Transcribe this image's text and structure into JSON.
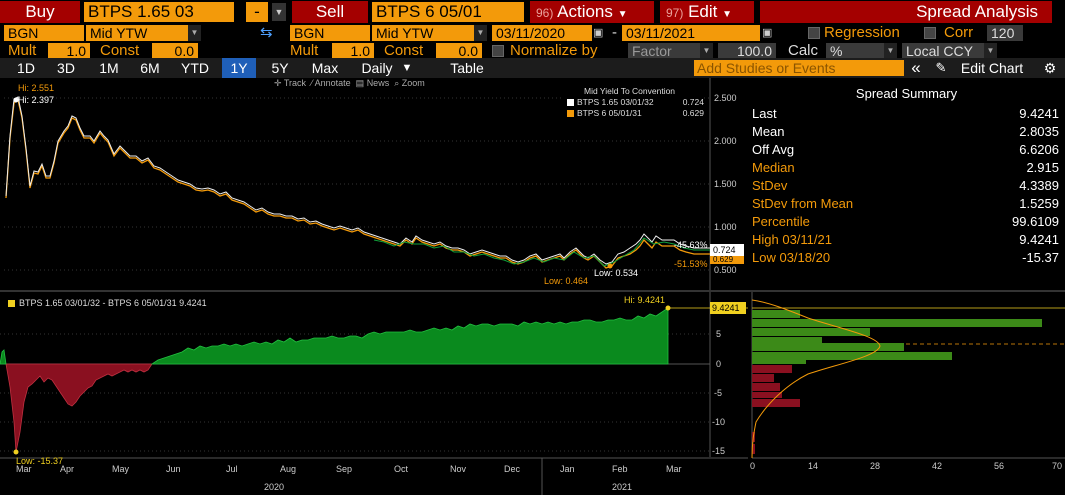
{
  "header": {
    "buy_label": "Buy",
    "buy_security": "BTPS 1.65 03",
    "dash_value": "-",
    "sell_label": "Sell",
    "sell_security": "BTPS 6 05/01",
    "actions_num": "96)",
    "actions_label": "Actions",
    "edit_num": "97)",
    "edit_label": "Edit",
    "title": "Spread Analysis"
  },
  "row2": {
    "source1": "BGN",
    "field1": "Mid YTW",
    "source2": "BGN",
    "field2": "Mid YTW",
    "start_date": "03/11/2020",
    "dash": "-",
    "end_date": "03/11/2021",
    "regression_label": "Regression",
    "corr_label": "Corr",
    "corr_value": "120"
  },
  "row3": {
    "mult1_label": "Mult",
    "mult1_value": "1.0",
    "const1_label": "Const",
    "const1_value": "0.0",
    "mult2_label": "Mult",
    "mult2_value": "1.0",
    "const2_label": "Const",
    "const2_value": "0.0",
    "normalize_label": "Normalize by",
    "normalize_value": "Factor",
    "factor_value": "100.0",
    "calc_label": "Calc",
    "calc_value": "%",
    "ccy_value": "Local CCY"
  },
  "toolbar": {
    "periods": [
      "1D",
      "3D",
      "1M",
      "6M",
      "YTD",
      "1Y",
      "5Y",
      "Max"
    ],
    "selected_period": "1Y",
    "frequency": "Daily",
    "table_label": "Table",
    "studies_placeholder": "Add Studies or Events",
    "collapse_label": "«",
    "edit_chart_label": "Edit Chart"
  },
  "top_chart": {
    "tools": [
      "Track",
      "Annotate",
      "News",
      "Zoom"
    ],
    "legend_title": "Mid Yield To Convention",
    "legend": [
      {
        "name": "BTPS 1.65 03/01/32",
        "value": "0.724",
        "color": "#ffffff"
      },
      {
        "name": "BTPS 6 05/01/31",
        "value": "0.629",
        "color": "#f39a0a"
      }
    ],
    "hi1": "Hi: 2.551",
    "hi2": "Hi: 2.397",
    "low1": "Low: 0.464",
    "low2": "Low: 0.534",
    "pct1": "-45.63%",
    "pct2": "-51.53%",
    "last1": "0.724",
    "last2": "0.629",
    "y_ticks": [
      "2.500",
      "2.000",
      "1.500",
      "1.000",
      "0.500"
    ]
  },
  "bottom_chart": {
    "legend": "BTPS 1.65 03/01/32 - BTPS 6 05/01/31 9.4241",
    "hi": "Hi: 9.4241",
    "low": "Low: -15.37",
    "last": "9.4241",
    "y_ticks": [
      "5",
      "0",
      "-5",
      "-10",
      "-15"
    ],
    "months": [
      "Mar",
      "Apr",
      "May",
      "Jun",
      "Jul",
      "Aug",
      "Sep",
      "Oct",
      "Nov",
      "Dec",
      "Jan",
      "Feb",
      "Mar"
    ],
    "years": [
      "2020",
      "2021"
    ]
  },
  "histogram": {
    "x_ticks": [
      "0",
      "14",
      "28",
      "42",
      "56",
      "70"
    ]
  },
  "summary": {
    "title": "Spread Summary",
    "rows": [
      {
        "label": "Last",
        "value": "9.4241",
        "color": "#ffffff"
      },
      {
        "label": "Mean",
        "value": "2.8035",
        "color": "#ffffff"
      },
      {
        "label": "Off Avg",
        "value": "6.6206",
        "color": "#ffffff"
      },
      {
        "label": "Median",
        "value": "2.915",
        "color": "#f39a0a"
      },
      {
        "label": "StDev",
        "value": "4.3389",
        "color": "#f39a0a"
      },
      {
        "label": "StDev from Mean",
        "value": "1.5259",
        "color": "#f39a0a"
      },
      {
        "label": "Percentile",
        "value": "99.6109",
        "color": "#f39a0a"
      },
      {
        "label": "High 03/11/21",
        "value": "9.4241",
        "color": "#f39a0a"
      },
      {
        "label": "Low 03/18/20",
        "value": "-15.37",
        "color": "#f39a0a"
      }
    ]
  },
  "colors": {
    "accent": "#f39a0a",
    "header_red": "#a40000",
    "selected_blue": "#1f5fb8",
    "spread_positive": "#0a8a1e",
    "spread_negative": "#8a1020"
  }
}
